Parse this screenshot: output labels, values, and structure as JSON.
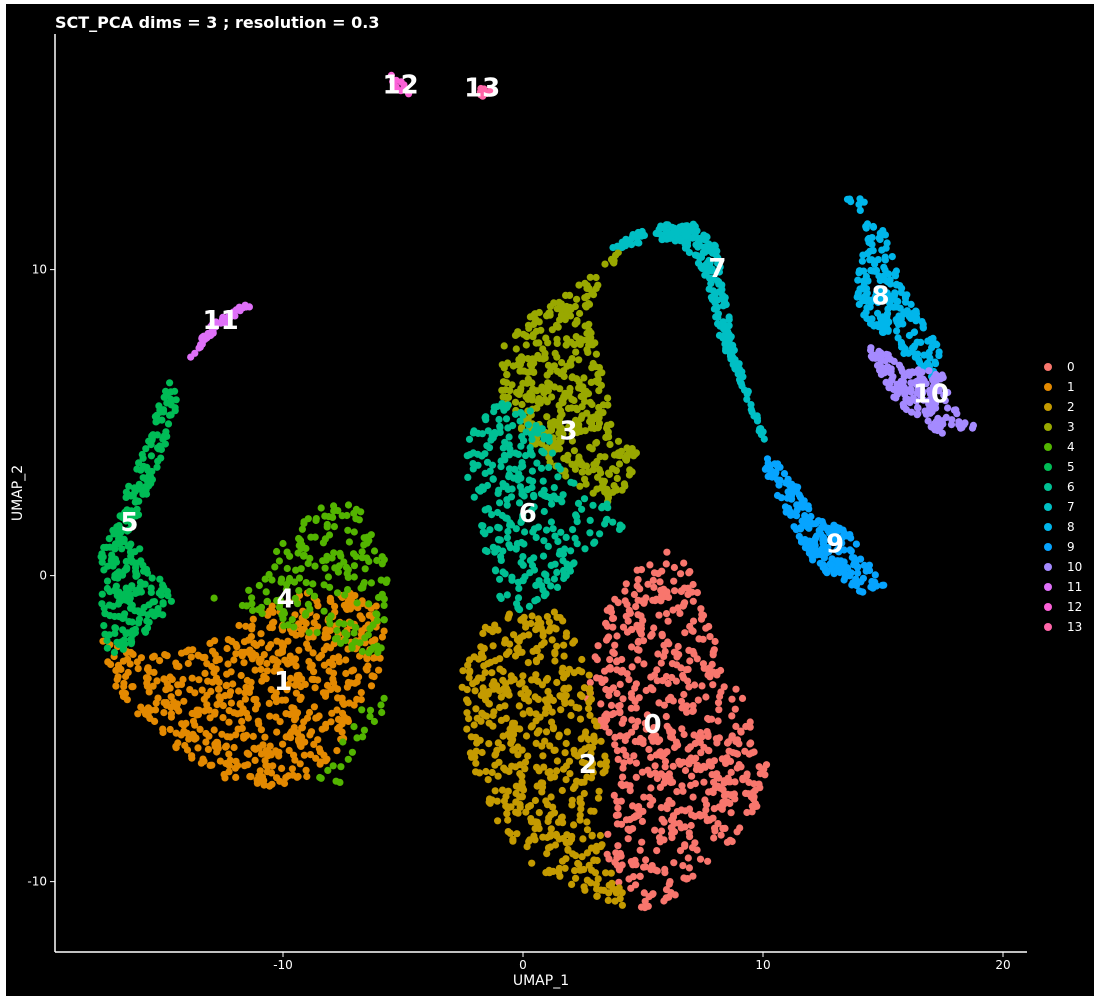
{
  "chart_data": {
    "type": "scatter",
    "title": "SCT_PCA dims =  3 ; resolution = 0.3",
    "xlabel": "UMAP_1",
    "ylabel": "UMAP_2",
    "xlim": [
      -19.5,
      21
    ],
    "ylim": [
      -12.3,
      17.7
    ],
    "x_ticks": [
      -10,
      0,
      10,
      20
    ],
    "y_ticks": [
      -10,
      0,
      10
    ],
    "x_tick_labels": [
      "-10",
      "0",
      "10",
      "20"
    ],
    "y_tick_labels": [
      "-10",
      "0",
      "10"
    ],
    "background": "#000000",
    "legend_position": "right",
    "legend": [
      {
        "label": "0",
        "color": "#F8766D"
      },
      {
        "label": "1",
        "color": "#E38900"
      },
      {
        "label": "2",
        "color": "#C49A00"
      },
      {
        "label": "3",
        "color": "#99A800"
      },
      {
        "label": "4",
        "color": "#53B400"
      },
      {
        "label": "5",
        "color": "#00BC56"
      },
      {
        "label": "6",
        "color": "#00C094"
      },
      {
        "label": "7",
        "color": "#00BFC4"
      },
      {
        "label": "8",
        "color": "#00B6EB"
      },
      {
        "label": "9",
        "color": "#06A4FF"
      },
      {
        "label": "10",
        "color": "#A58AFF"
      },
      {
        "label": "11",
        "color": "#DF70F8"
      },
      {
        "label": "12",
        "color": "#FB61D7"
      },
      {
        "label": "13",
        "color": "#FF66A8"
      }
    ],
    "cluster_labels": [
      {
        "label": "0",
        "x": 5.4,
        "y": -4.9
      },
      {
        "label": "1",
        "x": -10.0,
        "y": -3.5
      },
      {
        "label": "2",
        "x": 2.7,
        "y": -6.2
      },
      {
        "label": "3",
        "x": 1.9,
        "y": 4.7
      },
      {
        "label": "4",
        "x": -9.9,
        "y": -0.8
      },
      {
        "label": "5",
        "x": -16.4,
        "y": 1.7
      },
      {
        "label": "6",
        "x": 0.2,
        "y": 2.0
      },
      {
        "label": "7",
        "x": 8.1,
        "y": 10.0
      },
      {
        "label": "8",
        "x": 14.9,
        "y": 9.1
      },
      {
        "label": "9",
        "x": 13.0,
        "y": 1.0
      },
      {
        "label": "10",
        "x": 17.0,
        "y": 5.9
      },
      {
        "label": "11",
        "x": -12.6,
        "y": 8.3
      },
      {
        "label": "12",
        "x": -5.1,
        "y": 16.0
      },
      {
        "label": "13",
        "x": -1.7,
        "y": 15.9
      }
    ],
    "clusters": [
      {
        "id": "0",
        "polygons": [
          [
            [
              3.4,
              -1.2
            ],
            [
              4.6,
              0.1
            ],
            [
              6.0,
              0.8
            ],
            [
              7.1,
              0.2
            ],
            [
              7.6,
              -1.2
            ],
            [
              8.3,
              -2.6
            ],
            [
              9.0,
              -3.6
            ],
            [
              9.7,
              -5.2
            ],
            [
              10.2,
              -6.2
            ],
            [
              9.8,
              -7.6
            ],
            [
              8.9,
              -8.6
            ],
            [
              7.4,
              -9.6
            ],
            [
              5.8,
              -10.9
            ],
            [
              4.6,
              -10.9
            ],
            [
              3.6,
              -9.6
            ],
            [
              3.2,
              -8.2
            ],
            [
              4.0,
              -6.8
            ],
            [
              3.6,
              -5.4
            ],
            [
              2.6,
              -4.2
            ],
            [
              3.0,
              -2.6
            ]
          ]
        ],
        "count": 650
      },
      {
        "id": "1",
        "polygons": [
          [
            [
              -17.6,
              -2.1
            ],
            [
              -15.6,
              -2.6
            ],
            [
              -13.6,
              -2.4
            ],
            [
              -11.6,
              -1.4
            ],
            [
              -9.6,
              -0.6
            ],
            [
              -7.6,
              -0.4
            ],
            [
              -5.6,
              -1.2
            ],
            [
              -6.1,
              -3.6
            ],
            [
              -7.1,
              -4.6
            ],
            [
              -7.6,
              -5.6
            ],
            [
              -8.6,
              -6.6
            ],
            [
              -10.6,
              -6.9
            ],
            [
              -12.6,
              -6.6
            ],
            [
              -14.6,
              -5.6
            ],
            [
              -16.1,
              -4.6
            ],
            [
              -17.1,
              -3.6
            ]
          ]
        ],
        "count": 650
      },
      {
        "id": "2",
        "polygons": [
          [
            [
              -2.5,
              -3.0
            ],
            [
              -1.5,
              -1.5
            ],
            [
              0.0,
              -1.0
            ],
            [
              1.5,
              -1.2
            ],
            [
              2.6,
              -2.6
            ],
            [
              3.0,
              -4.2
            ],
            [
              3.6,
              -6.0
            ],
            [
              3.2,
              -8.2
            ],
            [
              3.6,
              -9.6
            ],
            [
              4.6,
              -10.9
            ],
            [
              2.6,
              -10.4
            ],
            [
              0.6,
              -9.6
            ],
            [
              -0.6,
              -8.6
            ],
            [
              -1.6,
              -7.6
            ],
            [
              -2.3,
              -5.6
            ],
            [
              -2.6,
              -4.1
            ]
          ]
        ],
        "count": 520
      },
      {
        "id": "3",
        "polygons": [
          [
            [
              -1.0,
              6.0
            ],
            [
              -0.8,
              7.5
            ],
            [
              0.4,
              8.6
            ],
            [
              1.7,
              9.1
            ],
            [
              2.8,
              10.0
            ],
            [
              4.0,
              10.6
            ],
            [
              3.8,
              10.2
            ],
            [
              3.2,
              9.5
            ],
            [
              2.6,
              8.6
            ],
            [
              3.4,
              6.6
            ],
            [
              3.8,
              4.6
            ],
            [
              4.8,
              4.0
            ],
            [
              4.6,
              3.0
            ],
            [
              3.6,
              2.2
            ],
            [
              1.8,
              3.2
            ],
            [
              0.4,
              4.2
            ]
          ]
        ],
        "count": 450
      },
      {
        "id": "4",
        "polygons": [
          [
            [
              -14.0,
              -0.6
            ],
            [
              -12.1,
              -0.8
            ],
            [
              -11.1,
              -0.3
            ],
            [
              -10.6,
              0.6
            ],
            [
              -9.6,
              1.4
            ],
            [
              -8.6,
              2.2
            ],
            [
              -7.1,
              2.4
            ],
            [
              -6.1,
              1.6
            ],
            [
              -5.6,
              0.4
            ],
            [
              -5.8,
              -1.8
            ],
            [
              -6.1,
              -3.6
            ],
            [
              -7.1,
              -4.6
            ],
            [
              -7.6,
              -5.6
            ],
            [
              -8.6,
              -6.6
            ],
            [
              -7.6,
              -6.8
            ],
            [
              -6.6,
              -5.6
            ],
            [
              -5.8,
              -4.4
            ],
            [
              -5.6,
              -2.8
            ]
          ]
        ],
        "count": 220
      },
      {
        "id": "5",
        "polygons": [
          [
            [
              -14.6,
              6.6
            ],
            [
              -15.2,
              5.6
            ],
            [
              -15.5,
              4.6
            ],
            [
              -16.1,
              3.6
            ],
            [
              -16.6,
              2.6
            ],
            [
              -17.2,
              1.6
            ],
            [
              -17.6,
              0.6
            ],
            [
              -17.6,
              -1.1
            ],
            [
              -17.3,
              -2.6
            ],
            [
              -16.1,
              -2.3
            ],
            [
              -15.1,
              -1.4
            ],
            [
              -14.4,
              -0.6
            ],
            [
              -15.8,
              0.4
            ],
            [
              -16.2,
              1.6
            ],
            [
              -15.6,
              2.8
            ],
            [
              -14.9,
              4.2
            ],
            [
              -14.4,
              5.6
            ]
          ]
        ],
        "count": 280
      },
      {
        "id": "6",
        "polygons": [
          [
            [
              -2.2,
              5.2
            ],
            [
              -0.8,
              5.8
            ],
            [
              0.8,
              5.2
            ],
            [
              1.4,
              3.8
            ],
            [
              2.2,
              3.0
            ],
            [
              3.6,
              2.4
            ],
            [
              4.4,
              1.6
            ],
            [
              2.6,
              0.6
            ],
            [
              1.6,
              -0.4
            ],
            [
              0.0,
              -1.2
            ],
            [
              -1.3,
              -0.8
            ],
            [
              -1.6,
              0.6
            ],
            [
              -1.8,
              2.0
            ],
            [
              -2.3,
              3.2
            ],
            [
              -2.4,
              4.4
            ]
          ]
        ],
        "count": 300
      },
      {
        "id": "7",
        "polygons": [
          [
            [
              3.4,
              10.6
            ],
            [
              4.6,
              11.2
            ],
            [
              6.1,
              11.5
            ],
            [
              7.3,
              11.5
            ],
            [
              8.1,
              10.8
            ],
            [
              8.3,
              9.6
            ],
            [
              8.6,
              8.4
            ],
            [
              8.9,
              7.2
            ],
            [
              9.4,
              6.0
            ],
            [
              9.9,
              5.0
            ],
            [
              10.3,
              4.2
            ],
            [
              9.9,
              4.6
            ],
            [
              9.4,
              5.6
            ],
            [
              8.8,
              6.6
            ],
            [
              8.2,
              7.8
            ],
            [
              7.8,
              9.2
            ],
            [
              7.2,
              10.4
            ],
            [
              6.1,
              11.0
            ],
            [
              4.6,
              10.8
            ]
          ]
        ],
        "count": 260
      },
      {
        "id": "8",
        "polygons": [
          [
            [
              13.3,
              12.5
            ],
            [
              14.1,
              12.4
            ],
            [
              15.1,
              11.2
            ],
            [
              15.6,
              10.0
            ],
            [
              16.1,
              9.0
            ],
            [
              16.9,
              8.0
            ],
            [
              17.6,
              7.2
            ],
            [
              17.1,
              6.4
            ],
            [
              16.1,
              7.0
            ],
            [
              15.2,
              7.8
            ],
            [
              14.4,
              8.2
            ],
            [
              13.8,
              8.8
            ],
            [
              14.0,
              10.0
            ],
            [
              14.4,
              11.2
            ]
          ]
        ],
        "count": 220
      },
      {
        "id": "9",
        "polygons": [
          [
            [
              10.3,
              4.0
            ],
            [
              10.9,
              3.4
            ],
            [
              11.6,
              2.8
            ],
            [
              12.1,
              2.0
            ],
            [
              13.6,
              1.4
            ],
            [
              14.6,
              0.2
            ],
            [
              15.1,
              -0.3
            ],
            [
              14.1,
              -0.6
            ],
            [
              12.9,
              -0.1
            ],
            [
              11.9,
              0.6
            ],
            [
              11.1,
              1.8
            ],
            [
              10.6,
              2.6
            ],
            [
              10.0,
              3.6
            ]
          ]
        ],
        "count": 220
      },
      {
        "id": "10",
        "polygons": [
          [
            [
              14.2,
              7.6
            ],
            [
              15.4,
              7.2
            ],
            [
              16.6,
              6.8
            ],
            [
              17.6,
              6.6
            ],
            [
              17.8,
              5.6
            ],
            [
              18.6,
              5.0
            ],
            [
              19.1,
              4.9
            ],
            [
              18.1,
              4.6
            ],
            [
              17.1,
              4.6
            ],
            [
              16.4,
              5.1
            ],
            [
              15.6,
              5.6
            ],
            [
              14.9,
              6.6
            ]
          ]
        ],
        "count": 160
      },
      {
        "id": "11",
        "polygons": [
          [
            [
              -14.0,
              7.0
            ],
            [
              -13.6,
              7.6
            ],
            [
              -13.0,
              8.2
            ],
            [
              -12.3,
              8.6
            ],
            [
              -11.5,
              8.9
            ],
            [
              -11.3,
              8.8
            ],
            [
              -12.1,
              8.4
            ],
            [
              -12.9,
              7.9
            ],
            [
              -13.5,
              7.3
            ]
          ]
        ],
        "count": 45
      },
      {
        "id": "12",
        "polygons": [
          [
            [
              -5.5,
              16.4
            ],
            [
              -5.0,
              16.1
            ],
            [
              -4.6,
              15.8
            ],
            [
              -4.9,
              15.6
            ],
            [
              -5.4,
              15.9
            ]
          ]
        ],
        "count": 12
      },
      {
        "id": "13",
        "polygons": [
          [
            [
              -1.8,
              16.0
            ],
            [
              -1.3,
              15.9
            ],
            [
              -1.4,
              15.6
            ],
            [
              -1.9,
              15.7
            ]
          ]
        ],
        "count": 10
      }
    ]
  }
}
